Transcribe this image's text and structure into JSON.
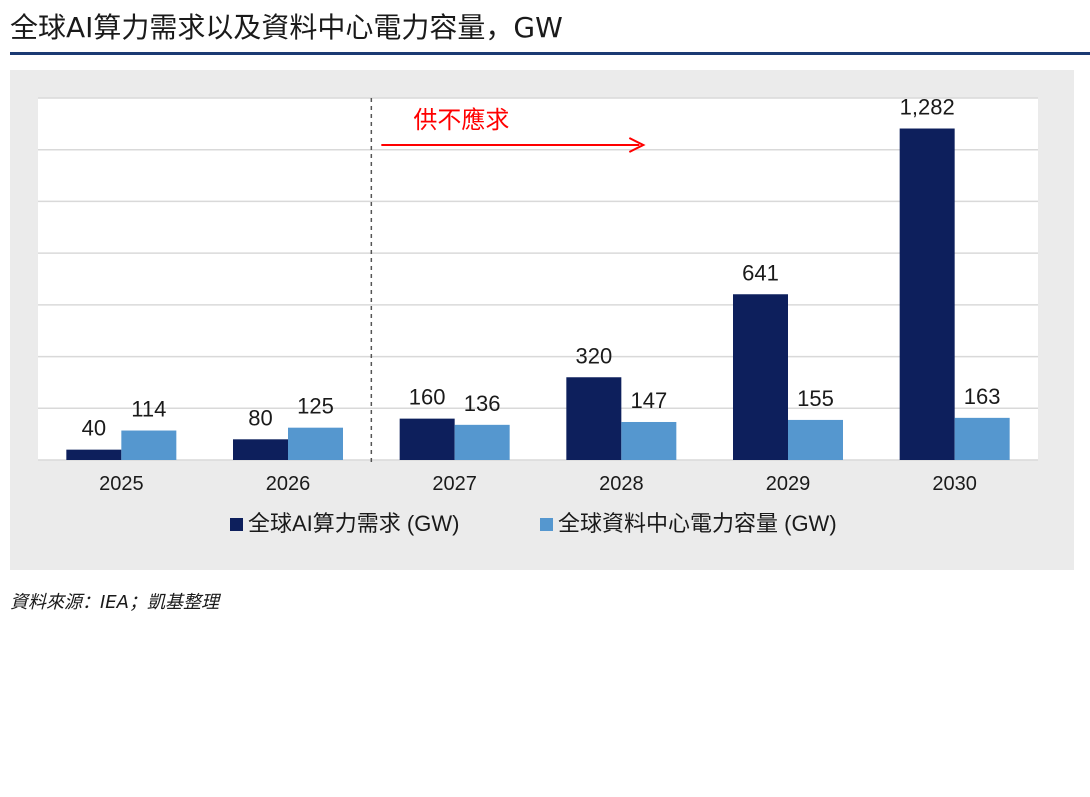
{
  "header": {
    "title": "全球AI算力需求以及資料中心電力容量，GW"
  },
  "chart_data": {
    "type": "bar",
    "categories": [
      "2025",
      "2026",
      "2027",
      "2028",
      "2029",
      "2030"
    ],
    "series": [
      {
        "name": "全球AI算力需求 (GW)",
        "values": [
          40,
          80,
          160,
          320,
          641,
          1282
        ],
        "labels": [
          "40",
          "80",
          "160",
          "320",
          "641",
          "1,282"
        ],
        "color": "#0d1f5c"
      },
      {
        "name": "全球資料中心電力容量 (GW)",
        "values": [
          114,
          125,
          136,
          147,
          155,
          163
        ],
        "labels": [
          "114",
          "125",
          "136",
          "147",
          "155",
          "163"
        ],
        "color": "#5597cf"
      }
    ],
    "ylim": [
      0,
      1400
    ],
    "grid": true,
    "legend_position": "bottom",
    "annotation": {
      "text": "供不應求",
      "color": "#ff0000",
      "divider_after_category": "2026"
    }
  },
  "footer": {
    "source": "資料來源：IEA；凱基整理"
  }
}
